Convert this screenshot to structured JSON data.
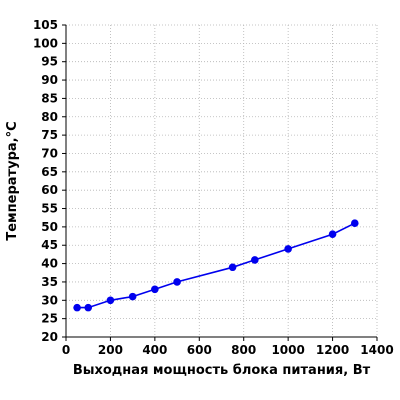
{
  "chart_data": {
    "type": "line",
    "title": "",
    "xlabel": "Выходная мощность блока питания, Вт",
    "ylabel": "Температура,°C",
    "xlim": [
      0,
      1400
    ],
    "ylim": [
      20,
      105
    ],
    "x_ticks": [
      "0",
      "200",
      "400",
      "600",
      "800",
      "1000",
      "1200",
      "1400"
    ],
    "y_ticks": [
      "20",
      "25",
      "30",
      "35",
      "40",
      "45",
      "50",
      "55",
      "60",
      "65",
      "70",
      "75",
      "80",
      "85",
      "90",
      "95",
      "100",
      "105"
    ],
    "grid": true,
    "legend": "none",
    "series": [
      {
        "color": "#0000ee",
        "marker": "circle",
        "x": [
          50,
          100,
          200,
          300,
          400,
          500,
          750,
          850,
          1000,
          1200,
          1300
        ],
        "y": [
          28,
          28,
          30,
          31,
          33,
          35,
          39,
          41,
          44,
          48,
          51
        ]
      }
    ]
  }
}
